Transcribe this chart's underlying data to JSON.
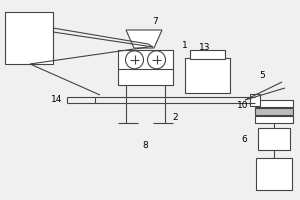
{
  "bg_color": "#f0f0f0",
  "line_color": "#444444",
  "lw": 0.8,
  "label_fontsize": 6.5
}
